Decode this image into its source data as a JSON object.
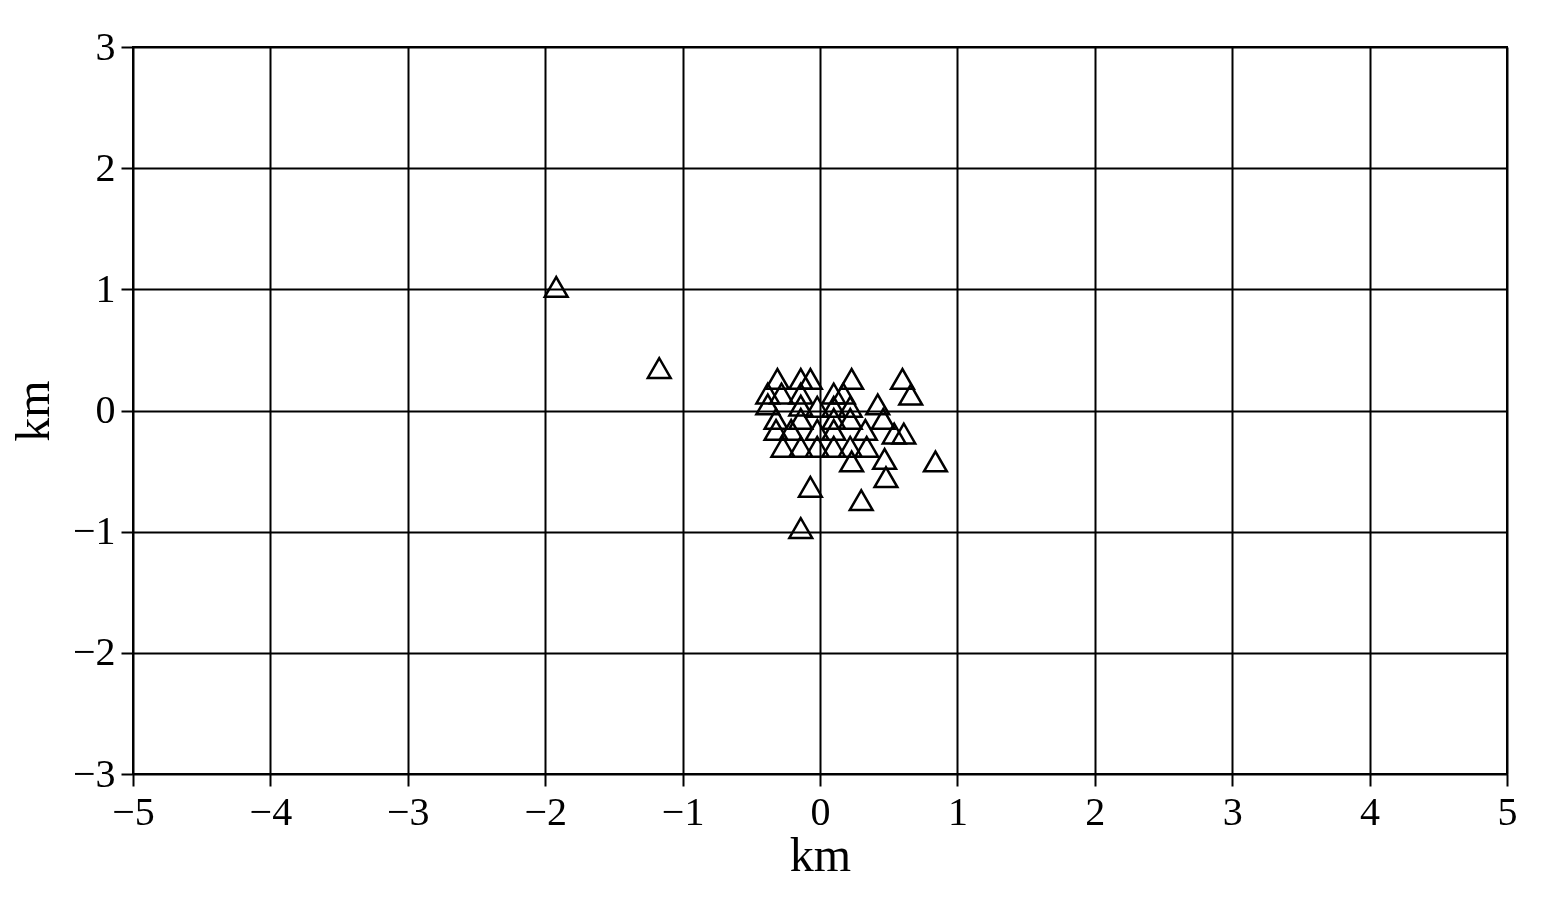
{
  "chart_data": {
    "type": "scatter",
    "xlabel": "km",
    "ylabel": "km",
    "marker": "triangle",
    "grid": true,
    "xlim": [
      -5,
      5
    ],
    "xticks": [
      -5,
      -4,
      -3,
      -2,
      -1,
      0,
      1,
      2,
      3,
      4,
      5
    ],
    "ylim": [
      -3,
      3
    ],
    "yticks": [
      -3,
      -2,
      -1,
      0,
      1,
      2,
      3
    ],
    "series": [
      {
        "color": "#000000",
        "x": [
          -1.92,
          -1.17,
          0.84,
          0.47,
          0.48,
          0.3,
          -0.07,
          -0.14,
          0.23,
          0.6,
          0.66,
          0.23,
          -0.31,
          -0.14,
          -0.07,
          -0.38,
          -0.28,
          -0.14,
          0.1,
          0.17,
          -0.38,
          -0.14,
          -0.02,
          0.1,
          0.22,
          0.42,
          -0.32,
          -0.14,
          -0.02,
          0.1,
          0.22,
          0.34,
          0.46,
          -0.32,
          -0.21,
          -0.02,
          0.1,
          0.22,
          0.33,
          0.54,
          0.61,
          -0.27,
          -0.14,
          -0.02,
          0.1,
          0.22,
          0.34
        ],
        "values": [
          1.02,
          0.35,
          -0.42,
          -0.4,
          -0.55,
          -0.74,
          -0.63,
          -0.97,
          -0.42,
          0.26,
          0.13,
          0.26,
          0.26,
          0.26,
          0.26,
          0.14,
          0.14,
          0.14,
          0.14,
          0.14,
          0.05,
          0.04,
          0.03,
          0.03,
          0.03,
          0.05,
          -0.07,
          -0.07,
          null,
          -0.07,
          -0.07,
          null,
          -0.07,
          -0.16,
          -0.16,
          -0.16,
          -0.16,
          null,
          -0.16,
          -0.19,
          -0.19,
          -0.3,
          -0.3,
          -0.3,
          -0.3,
          -0.3,
          -0.3
        ]
      }
    ]
  }
}
